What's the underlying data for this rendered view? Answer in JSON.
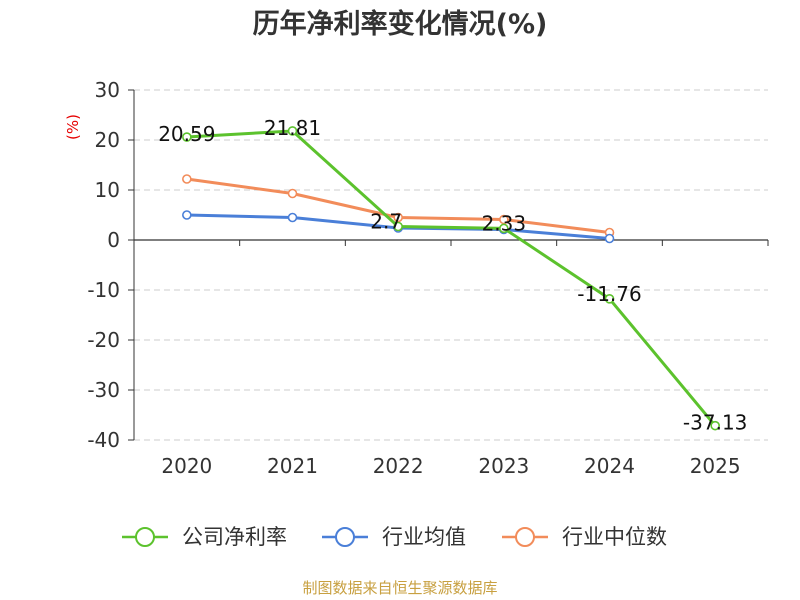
{
  "chart_data": {
    "type": "line",
    "title": "历年净利率变化情况(%)",
    "ylabel": "(%)",
    "categories": [
      "2020",
      "2021",
      "2022",
      "2023",
      "2024",
      "2025"
    ],
    "ylim": [
      -40,
      30
    ],
    "yticks": [
      30,
      20,
      10,
      0,
      -10,
      -20,
      -30,
      -40
    ],
    "ytick_labels": [
      "30",
      "20",
      "10",
      "0",
      "-10",
      "-20",
      "-30",
      "-40"
    ],
    "grid": true,
    "legend_position": "bottom",
    "series": [
      {
        "name": "公司净利率",
        "color": "#5cc22d",
        "values": [
          20.59,
          21.81,
          2.7,
          2.33,
          -11.76,
          -37.13
        ],
        "labels": [
          "20.59",
          "21.81",
          "2.7",
          "2.33",
          "-11.76",
          "-37.13"
        ]
      },
      {
        "name": "行业均值",
        "color": "#4a7fd8",
        "values": [
          5.0,
          4.5,
          2.4,
          2.1,
          0.3,
          null
        ]
      },
      {
        "name": "行业中位数",
        "color": "#f28c5a",
        "values": [
          12.2,
          9.3,
          4.5,
          4.1,
          1.5,
          null
        ]
      }
    ]
  },
  "source": "制图数据来自恒生聚源数据库"
}
